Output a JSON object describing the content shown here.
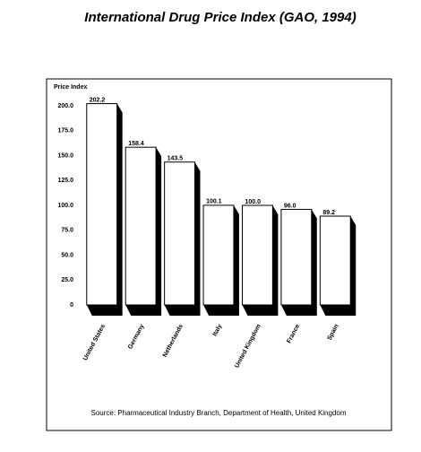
{
  "chart_data": {
    "type": "bar",
    "title": "International Drug Price Index (GAO, 1994)",
    "y_label": "Price Index",
    "source": "Source: Pharmaceutical Industry Branch, Department of Health, United Kingdom",
    "categories": [
      "United States",
      "Germany",
      "Netherlands",
      "Italy",
      "United Kingdom",
      "France",
      "Spain"
    ],
    "values": [
      202.2,
      158.4,
      143.5,
      100.1,
      100.0,
      96.0,
      89.2
    ],
    "value_labels": [
      "202.2",
      "158.4",
      "143.5",
      "100.1",
      "100.0",
      "96.0",
      "89.2"
    ],
    "color": "#ffffff",
    "ylim": [
      0,
      200
    ],
    "yticks": [
      0,
      {
        "value": 25,
        "label": "25.0"
      },
      {
        "value": 50,
        "label": "50.0"
      },
      {
        "value": 75,
        "label": "75.0"
      },
      {
        "value": 100,
        "label": "100.0"
      },
      {
        "value": 125,
        "label": "125.0"
      },
      {
        "value": 150,
        "label": "150.0"
      },
      {
        "value": 175,
        "label": "175.0"
      },
      {
        "value": 200,
        "label": "200.0"
      }
    ],
    "grid": false
  }
}
